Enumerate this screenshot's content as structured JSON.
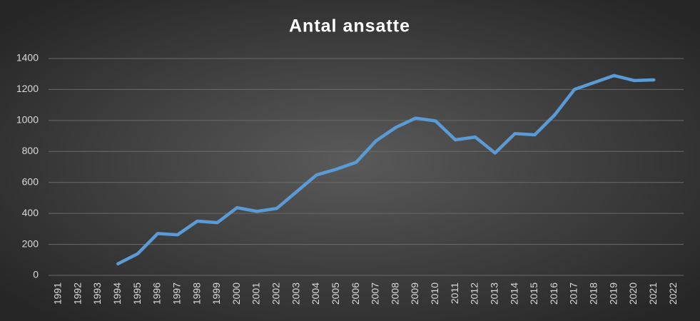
{
  "chart_data": {
    "type": "line",
    "title": "Antal ansatte",
    "categories": [
      "1991",
      "1992",
      "1993",
      "1994",
      "1995",
      "1996",
      "1997",
      "1998",
      "1999",
      "2000",
      "2001",
      "2002",
      "2003",
      "2004",
      "2005",
      "2006",
      "2007",
      "2008",
      "2009",
      "2010",
      "2011",
      "2012",
      "2013",
      "2014",
      "2015",
      "2016",
      "2017",
      "2018",
      "2019",
      "2020",
      "2021",
      "2022"
    ],
    "series": [
      {
        "name": "Antal ansatte",
        "color": "#5b9bd5",
        "values": [
          null,
          null,
          null,
          75,
          140,
          270,
          262,
          350,
          340,
          437,
          413,
          432,
          540,
          648,
          685,
          730,
          868,
          955,
          1015,
          997,
          875,
          893,
          790,
          915,
          907,
          1035,
          1200,
          1245,
          1290,
          1258,
          1262,
          null
        ]
      }
    ],
    "ylim": [
      0,
      1400
    ],
    "yticks": [
      0,
      200,
      400,
      600,
      800,
      1000,
      1200,
      1400
    ],
    "grid": true
  }
}
